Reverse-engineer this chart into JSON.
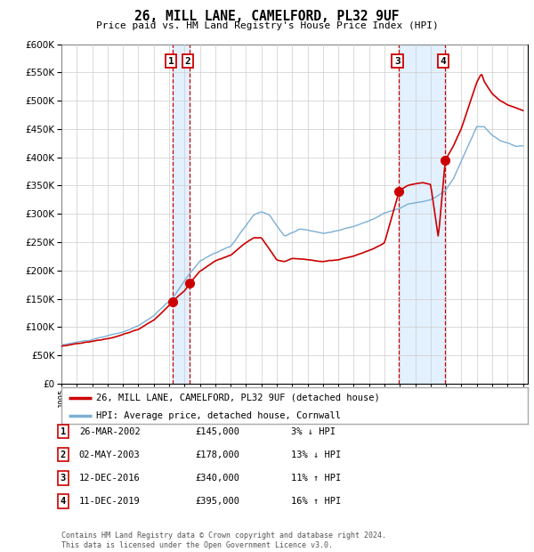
{
  "title": "26, MILL LANE, CAMELFORD, PL32 9UF",
  "subtitle": "Price paid vs. HM Land Registry's House Price Index (HPI)",
  "x_start_year": 1995,
  "x_end_year": 2025,
  "y_min": 0,
  "y_max": 600000,
  "y_ticks": [
    0,
    50000,
    100000,
    150000,
    200000,
    250000,
    300000,
    350000,
    400000,
    450000,
    500000,
    550000,
    600000
  ],
  "sales": [
    {
      "date_num": 2002.23,
      "price": 145000,
      "label": "1"
    },
    {
      "date_num": 2003.34,
      "price": 178000,
      "label": "2"
    },
    {
      "date_num": 2016.95,
      "price": 340000,
      "label": "3"
    },
    {
      "date_num": 2019.95,
      "price": 395000,
      "label": "4"
    }
  ],
  "hpi_line_color": "#7bafd4",
  "price_line_color": "#cc0000",
  "vline_color": "#cc0000",
  "shade_color": "#ddeeff",
  "legend_entries": [
    "26, MILL LANE, CAMELFORD, PL32 9UF (detached house)",
    "HPI: Average price, detached house, Cornwall"
  ],
  "table_rows": [
    {
      "num": "1",
      "date": "26-MAR-2002",
      "price": "£145,000",
      "change": "3% ↓ HPI"
    },
    {
      "num": "2",
      "date": "02-MAY-2003",
      "price": "£178,000",
      "change": "13% ↓ HPI"
    },
    {
      "num": "3",
      "date": "12-DEC-2016",
      "price": "£340,000",
      "change": "11% ↑ HPI"
    },
    {
      "num": "4",
      "date": "11-DEC-2019",
      "price": "£395,000",
      "change": "16% ↑ HPI"
    }
  ],
  "footer": "Contains HM Land Registry data © Crown copyright and database right 2024.\nThis data is licensed under the Open Government Licence v3.0.",
  "background_color": "#ffffff",
  "grid_color": "#cccccc"
}
